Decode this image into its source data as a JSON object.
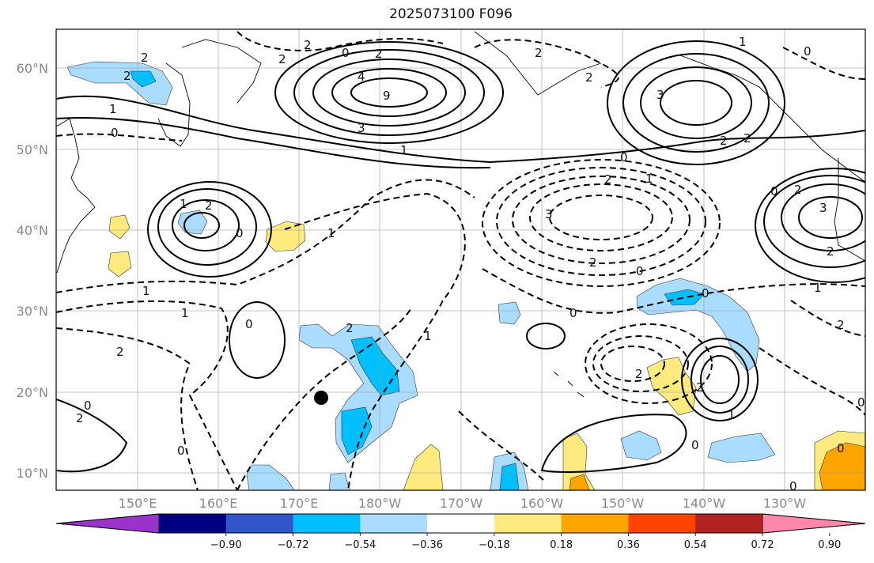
{
  "title": "2025073100 F096",
  "lat_labels": [
    "60°N",
    "50°N",
    "40°N",
    "30°N",
    "20°N",
    "10°N"
  ],
  "lon_labels": [
    "150°E",
    "160°E",
    "170°E",
    "180°W",
    "170°W",
    "160°W",
    "150°W",
    "140°W",
    "130°W"
  ],
  "colorbar": {
    "tick_labels": [
      "−0.90",
      "−0.72",
      "−0.54",
      "−0.36",
      "−0.18",
      "0.18",
      "0.36",
      "0.54",
      "0.72",
      "0.90"
    ],
    "colors": [
      "#9933cc",
      "#000080",
      "#3355cc",
      "#00bfff",
      "#aadcff",
      "#ffffff",
      "#ffea80",
      "#ffa500",
      "#ff4400",
      "#b22222",
      "#ff88aa"
    ]
  },
  "contour_labels": [
    "2",
    "2",
    "1",
    "0",
    "2",
    "2",
    "2",
    "0",
    "4",
    "9",
    "3",
    "1",
    "1",
    "3",
    "2",
    "2",
    "0",
    "1",
    "1",
    "0",
    "2",
    "3",
    "0",
    "2",
    "1",
    "3",
    "2",
    "1",
    "2",
    "2",
    "0",
    "1",
    "0",
    "1",
    "2",
    "2",
    "0",
    "2",
    "0",
    "1",
    "0",
    "2",
    "2",
    "0",
    "0",
    "0",
    "1",
    "2",
    "0",
    "0",
    "0",
    "2",
    "2"
  ]
}
